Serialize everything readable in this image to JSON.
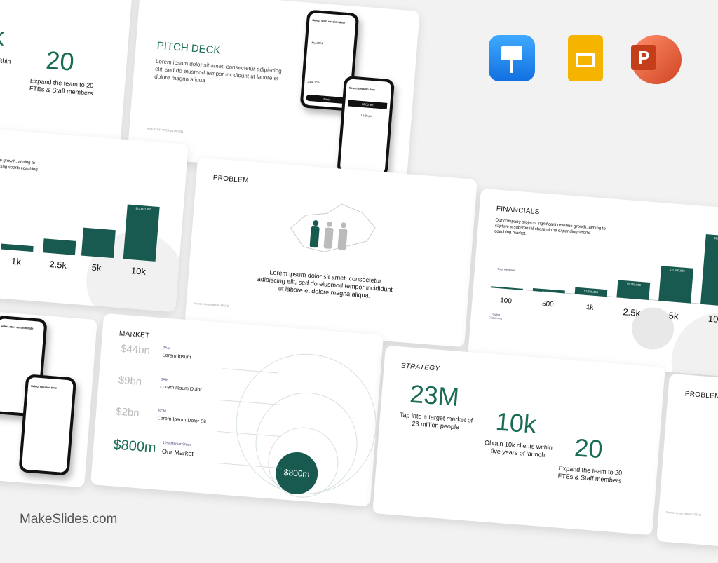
{
  "brand": "MakeSlides.com",
  "apps": [
    {
      "name": "Keynote",
      "color": "#1d8df0"
    },
    {
      "name": "Google Slides",
      "color": "#f5b400"
    },
    {
      "name": "PowerPoint",
      "color": "#d04423"
    }
  ],
  "accent": "#185a4f",
  "strategy": {
    "title": "STRATEGY",
    "stats": [
      {
        "value": "23M",
        "text": "Tap into a target market of 23 million people"
      },
      {
        "value": "10k",
        "text": "Obtain 10k clients within five years of launch"
      },
      {
        "value": "20",
        "text": "Expand the team to 20 FTEs & Staff members"
      }
    ],
    "partial_left": "k",
    "partial_text": "s within\nnch"
  },
  "pitch": {
    "title": "PITCH DECK",
    "body": "Lorem ipsum dolor sit amet, consectetur adipiscing elit, sed do eiusmod tempor incididunt ut labore et dolore magna aliqua",
    "footer": "INVESTOR PRESENTATION",
    "phone1": {
      "heading": "Select start session date",
      "month": "May 2024",
      "month2": "June 2024",
      "button": "Next"
    },
    "phone2": {
      "heading": "Select session time",
      "slot1": "10:00 am",
      "slot2": "12:00 pm"
    }
  },
  "financials": {
    "title": "FINANCIALS",
    "body": "Our company projects significant revenue growth, aiming to capture a substantial share of the expanding sports coaching market.",
    "revenue_label": "Total Revenue",
    "customers_label": "Paying Customers",
    "partial_body": "ue growth, aiming to\nnding sports coaching"
  },
  "chart_data": {
    "type": "bar",
    "categories": [
      "100",
      "500",
      "1k",
      "2.5k",
      "5k",
      "10k"
    ],
    "values": [
      300000,
      1000000,
      2300000,
      5750000,
      11500000,
      23000000
    ],
    "labels": [
      "",
      "$1,000,000",
      "$2,300,000",
      "$5,750,000",
      "$11,500,000",
      "$23,000,000"
    ]
  },
  "problem": {
    "title": "PROBLEM",
    "body": "Lorem ipsum dolor sit amet, consectetur adipiscing elit, sed do eiusmod tempor incididunt ut labore et dolore magna aliqua.",
    "footer": "Source: Lorem ipsum (2024)"
  },
  "market": {
    "title": "MARKET",
    "rows": [
      {
        "value": "$44bn",
        "tag": "TAM",
        "label": "Lorem Ipsum"
      },
      {
        "value": "$9bn",
        "tag": "SAM",
        "label": "Lorem Ipsum Dolor"
      },
      {
        "value": "$2bn",
        "tag": "SOM",
        "label": "Lorem Ipsum Dolor Sit"
      },
      {
        "value": "$800m",
        "tag": "10% Market Share",
        "label": "Our Market"
      }
    ],
    "circle_label": "$800m"
  }
}
